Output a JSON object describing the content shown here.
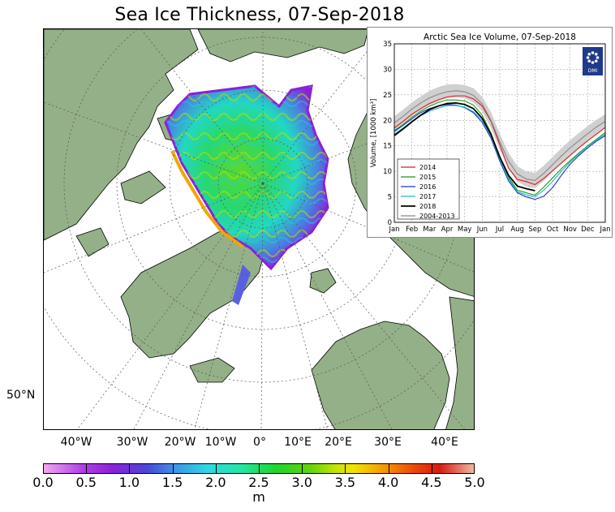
{
  "title": "Sea Ice Thickness, 07-Sep-2018",
  "map": {
    "longitude_labels": [
      "40°W",
      "30°W",
      "20°W",
      "10°W",
      "0°",
      "10°E",
      "20°E",
      "30°E",
      "40°E"
    ],
    "latitude_label": "50°N",
    "colors": {
      "land": "#94b088",
      "ocean": "#ffffff",
      "coastline": "#000000",
      "graticule": "#555555"
    }
  },
  "colorbar": {
    "tick_labels": [
      "0.0",
      "0.5",
      "1.0",
      "1.5",
      "2.0",
      "2.5",
      "3.0",
      "3.5",
      "4.0",
      "4.5",
      "5.0"
    ],
    "unit": "m",
    "range": [
      0,
      5
    ]
  },
  "inset": {
    "logo_text": "DMI",
    "logo_color": "#1f3a8a"
  },
  "chart_data": {
    "type": "line",
    "title": "Arctic Sea Ice Volume, 07-Sep-2018",
    "xlabel": "",
    "ylabel": "Volume, [1000 km³]",
    "x_tick_labels": [
      "Jan",
      "Feb",
      "Mar",
      "Apr",
      "May",
      "Jun",
      "Jul",
      "Aug",
      "Sep",
      "Oct",
      "Nov",
      "Dec",
      "Jan"
    ],
    "y_ticks": [
      0,
      5,
      10,
      15,
      20,
      25,
      30,
      35
    ],
    "ylim": [
      0,
      35
    ],
    "xlim": [
      1,
      13
    ],
    "grid": true,
    "legend_position": "bottom-left",
    "x_months": [
      1,
      1.5,
      2,
      2.5,
      3,
      3.5,
      4,
      4.5,
      5,
      5.5,
      6,
      6.5,
      7,
      7.5,
      8,
      8.5,
      9,
      9.5,
      10,
      10.5,
      11,
      11.5,
      12,
      12.5,
      13
    ],
    "series": [
      {
        "name": "2014",
        "color": "#e41a1c",
        "values": [
          18.5,
          19.8,
          21.2,
          22.3,
          23.3,
          24.0,
          24.6,
          24.8,
          24.8,
          24.2,
          22.8,
          19.8,
          15.2,
          10.6,
          8.4,
          8.0,
          7.4,
          8.6,
          10.1,
          11.6,
          13.1,
          14.6,
          16.0,
          17.3,
          18.6
        ]
      },
      {
        "name": "2015",
        "color": "#1a9a1a",
        "values": [
          18.0,
          19.2,
          20.6,
          21.8,
          22.8,
          23.5,
          24.0,
          24.0,
          23.8,
          23.0,
          21.0,
          17.5,
          12.8,
          8.8,
          6.3,
          5.8,
          5.3,
          6.9,
          8.7,
          10.5,
          12.1,
          13.6,
          15.0,
          16.3,
          17.6
        ]
      },
      {
        "name": "2016",
        "color": "#2233bb",
        "values": [
          17.8,
          19.0,
          20.3,
          21.5,
          22.3,
          22.8,
          23.1,
          23.0,
          22.5,
          21.5,
          19.6,
          16.5,
          12.0,
          8.1,
          5.8,
          5.0,
          4.5,
          5.1,
          6.8,
          9.2,
          11.4,
          13.1,
          14.6,
          15.9,
          17.0
        ]
      },
      {
        "name": "2017",
        "color": "#1fb6c9",
        "values": [
          17.3,
          18.5,
          19.8,
          20.9,
          21.8,
          22.4,
          22.9,
          22.9,
          22.6,
          21.7,
          20.0,
          16.8,
          12.4,
          8.5,
          6.0,
          5.4,
          5.0,
          6.3,
          8.0,
          10.0,
          11.8,
          13.4,
          14.9,
          16.1,
          17.3
        ]
      },
      {
        "name": "2018",
        "color": "#000000",
        "values": [
          17.0,
          18.3,
          19.7,
          21.0,
          22.1,
          22.8,
          23.3,
          23.4,
          23.1,
          22.3,
          20.4,
          17.2,
          12.8,
          9.2,
          7.1,
          6.6,
          6.2
        ]
      },
      {
        "name": "2004-2013",
        "color": "#888888",
        "values": [
          19.5,
          20.8,
          22.2,
          23.4,
          24.4,
          25.1,
          25.6,
          25.8,
          25.6,
          24.9,
          23.2,
          20.0,
          15.8,
          12.0,
          9.5,
          8.5,
          8.2,
          9.6,
          11.3,
          13.0,
          14.6,
          16.0,
          17.4,
          18.7,
          19.8
        ]
      }
    ],
    "climatology_band": {
      "lower": [
        18.2,
        19.4,
        20.8,
        22.0,
        23.0,
        23.8,
        24.3,
        24.5,
        24.3,
        23.5,
        21.8,
        18.5,
        14.2,
        10.5,
        8.0,
        7.0,
        6.7,
        8.1,
        9.9,
        11.6,
        13.2,
        14.6,
        16.0,
        17.3,
        18.5
      ],
      "upper": [
        20.8,
        22.1,
        23.5,
        24.7,
        25.8,
        26.5,
        27.0,
        27.1,
        26.9,
        26.3,
        24.6,
        21.6,
        17.4,
        13.6,
        11.0,
        10.0,
        9.7,
        11.1,
        12.8,
        14.5,
        16.1,
        17.5,
        18.9,
        20.1,
        21.2
      ]
    }
  }
}
